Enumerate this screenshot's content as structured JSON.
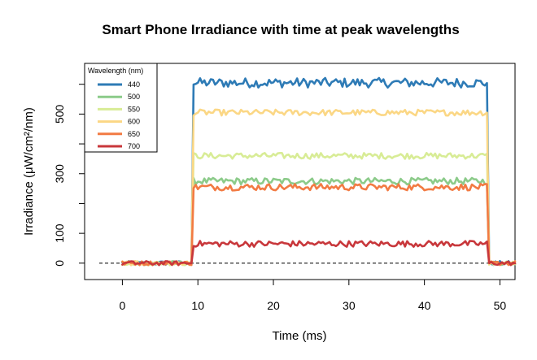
{
  "chart_data": {
    "type": "line",
    "title": "Smart Phone Irradiance with time at peak wavelengths",
    "xlabel": "Time (ms)",
    "ylabel": "Irradiance (μW/cm²/nm)",
    "xlim": [
      -5,
      52
    ],
    "ylim": [
      -55,
      670
    ],
    "x_ticks": [
      0,
      10,
      20,
      30,
      40,
      50
    ],
    "y_ticks": [
      0,
      100,
      200,
      300,
      400,
      500,
      600
    ],
    "y_tick_labels": [
      0,
      100,
      300,
      500
    ],
    "reference_line": {
      "y": 0,
      "style": "dashed"
    },
    "legend": {
      "title": "Wavelength (nm)",
      "position": "top-left"
    },
    "series": [
      {
        "name": "440",
        "color": "#2e7bb6",
        "plateau": 605,
        "noise": 16
      },
      {
        "name": "500",
        "color": "#8ccb8a",
        "plateau": 275,
        "noise": 11
      },
      {
        "name": "550",
        "color": "#d8ec96",
        "plateau": 360,
        "noise": 10
      },
      {
        "name": "600",
        "color": "#fbd785",
        "plateau": 505,
        "noise": 10
      },
      {
        "name": "650",
        "color": "#f27b43",
        "plateau": 255,
        "noise": 11
      },
      {
        "name": "700",
        "color": "#c8373b",
        "plateau": 65,
        "noise": 10
      }
    ],
    "time_start": 0,
    "time_end": 52,
    "rise_time": 9.3,
    "fall_time": 48.5,
    "baseline": 0
  }
}
